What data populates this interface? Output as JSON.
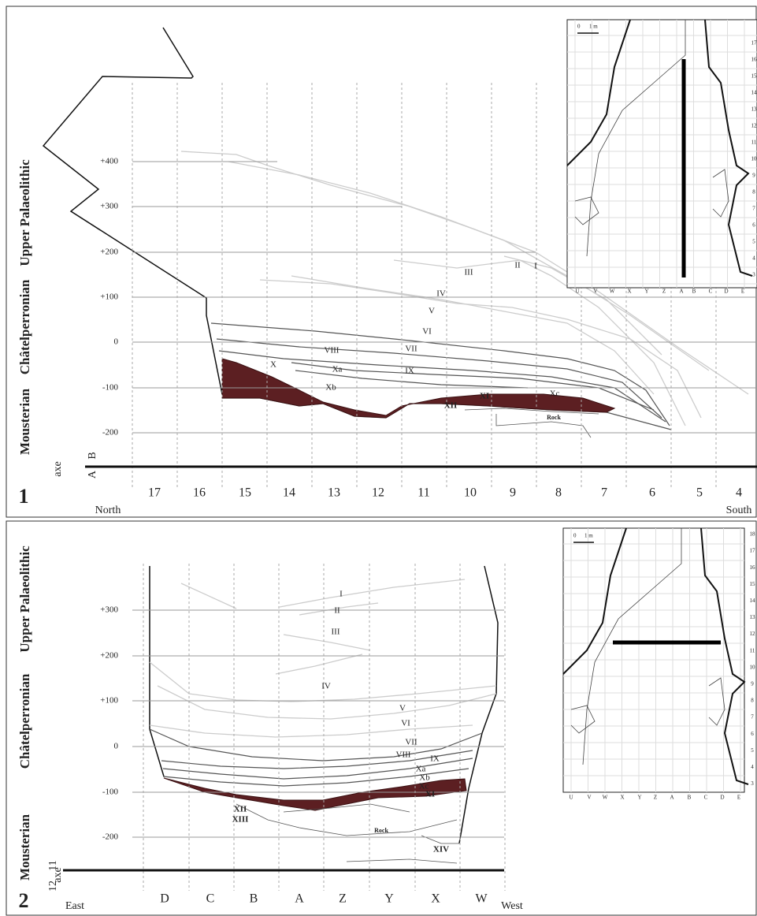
{
  "panels": [
    {
      "number": "1",
      "periods": [
        "Mousterian",
        "Châtelperronian",
        "Upper Palaeolithic"
      ],
      "axe": "axe",
      "axe_ids": [
        "A",
        "B"
      ],
      "depths": [
        "+400",
        "+300",
        "+200",
        "+100",
        "0",
        "-100",
        "-200"
      ],
      "layers": [
        "I",
        "II",
        "III",
        "IV",
        "V",
        "VI",
        "VII",
        "VIII",
        "IX",
        "X",
        "Xa",
        "Xb",
        "Xc",
        "XI",
        "XII",
        "Rock"
      ],
      "columns": [
        "17",
        "16",
        "15",
        "14",
        "13",
        "12",
        "11",
        "10",
        "9",
        "8",
        "7",
        "6",
        "5",
        "4"
      ],
      "left": "North",
      "right": "South",
      "inset": {
        "scale": [
          "0",
          "1 m"
        ],
        "columns": [
          "U",
          "V",
          "W",
          "X",
          "Y",
          "Z",
          "A",
          "B",
          "C",
          "D",
          "E"
        ],
        "rows": [
          "17",
          "16",
          "15",
          "14",
          "13",
          "12",
          "11",
          "10",
          "9",
          "8",
          "7",
          "6",
          "5",
          "4",
          "3"
        ]
      }
    },
    {
      "number": "2",
      "periods": [
        "Mousterian",
        "Châtelperronian",
        "Upper Palaeolithic"
      ],
      "axe": "axe",
      "axe_ids": [
        "12",
        "11"
      ],
      "depths": [
        "+300",
        "+200",
        "+100",
        "0",
        "-100",
        "-200"
      ],
      "layers": [
        "I",
        "II",
        "III",
        "IV",
        "V",
        "VI",
        "VII",
        "VIII",
        "IX",
        "Xa",
        "Xb",
        "Xc",
        "XI",
        "XII",
        "XIII",
        "XIV",
        "Rock"
      ],
      "columns": [
        "D",
        "C",
        "B",
        "A",
        "Z",
        "Y",
        "X",
        "W"
      ],
      "left": "East",
      "right": "West",
      "inset": {
        "scale": [
          "0",
          "1 m"
        ],
        "columns": [
          "U",
          "V",
          "W",
          "X",
          "Y",
          "Z",
          "A",
          "B",
          "C",
          "D",
          "E"
        ],
        "rows": [
          "18",
          "17",
          "16",
          "15",
          "14",
          "13",
          "12",
          "11",
          "10",
          "9",
          "8",
          "7",
          "6",
          "5",
          "4",
          "3"
        ]
      }
    }
  ]
}
